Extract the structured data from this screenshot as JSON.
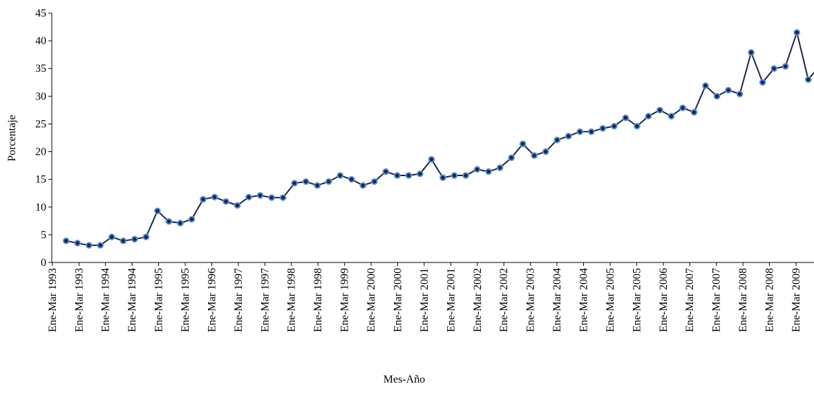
{
  "chart_data": {
    "type": "line",
    "y_label": "Porcentaje",
    "x_label": "Mes-Año",
    "x": [
      1,
      2,
      3,
      4,
      5,
      6,
      7,
      8,
      9,
      10,
      11,
      12,
      13,
      14,
      15,
      16,
      17,
      18,
      19,
      20,
      21,
      22,
      23,
      24,
      25,
      26,
      27,
      28,
      29,
      30,
      31,
      32,
      33,
      34,
      35,
      36,
      37,
      38,
      39,
      40,
      41,
      42,
      43,
      44,
      45,
      46,
      47,
      48,
      49,
      50,
      51,
      52,
      53,
      54,
      55,
      56,
      57,
      58,
      59,
      60,
      61,
      62,
      63,
      64,
      65,
      66,
      67
    ],
    "series": [
      {
        "color": "#1c2647",
        "marker_color": "#5b8fd6",
        "values": [
          3.9,
          3.5,
          3.1,
          3.1,
          4.6,
          3.9,
          4.2,
          4.6,
          9.3,
          7.4,
          7.1,
          7.8,
          11.4,
          11.8,
          11.0,
          10.3,
          11.8,
          12.1,
          11.7,
          11.7,
          14.3,
          14.6,
          13.9,
          14.6,
          15.7,
          15.0,
          13.9,
          14.6,
          16.4,
          15.7,
          15.7,
          16.0,
          18.6,
          15.3,
          15.7,
          15.7,
          16.8,
          16.4,
          17.1,
          18.9,
          21.4,
          19.3,
          20.0,
          22.1,
          22.8,
          23.6,
          23.6,
          24.2,
          24.6,
          26.1,
          24.6,
          26.4,
          27.5,
          26.4,
          27.9,
          27.1,
          31.9,
          30.0,
          31.1,
          30.4,
          37.9,
          32.5,
          35.0,
          35.4,
          41.5,
          33.0,
          35.5
        ]
      }
    ],
    "xlim": [
      -0.25,
      66.5
    ],
    "xticks": [
      {
        "value": -0.2,
        "label": "Ene-Mar 1993"
      },
      {
        "value": 2.13,
        "label": "Ene-Mar 1993"
      },
      {
        "value": 4.45,
        "label": "Ene-Mar 1994"
      },
      {
        "value": 6.78,
        "label": "Ene-Mar 1994"
      },
      {
        "value": 9.1,
        "label": "Ene-Mar 1995"
      },
      {
        "value": 11.43,
        "label": "Ene-Mar 1995"
      },
      {
        "value": 13.76,
        "label": "Ene-Mar 1996"
      },
      {
        "value": 16.08,
        "label": "Ene-Mar 1997"
      },
      {
        "value": 18.41,
        "label": "Ene-Mar 1997"
      },
      {
        "value": 20.73,
        "label": "Ene-Mar 1998"
      },
      {
        "value": 23.06,
        "label": "Ene-Mar 1998"
      },
      {
        "value": 25.39,
        "label": "Ene-Mar 1999"
      },
      {
        "value": 27.71,
        "label": "Ene-Mar 2000"
      },
      {
        "value": 30.04,
        "label": "Ene-Mar 2000"
      },
      {
        "value": 32.36,
        "label": "Ene-Mar 2001"
      },
      {
        "value": 34.69,
        "label": "Ene-Mar 2001"
      },
      {
        "value": 37.02,
        "label": "Ene-Mar 2002"
      },
      {
        "value": 39.34,
        "label": "Ene-Mar 2002"
      },
      {
        "value": 41.67,
        "label": "Ene-Mar 2003"
      },
      {
        "value": 43.99,
        "label": "Ene-Mar 2004"
      },
      {
        "value": 46.32,
        "label": "Ene-Mar 2004"
      },
      {
        "value": 48.65,
        "label": "Ene-Mar 2005"
      },
      {
        "value": 50.97,
        "label": "Ene-Mar 2005"
      },
      {
        "value": 53.3,
        "label": "Ene-Mar 2006"
      },
      {
        "value": 55.62,
        "label": "Ene-Mar 2007"
      },
      {
        "value": 57.95,
        "label": "Ene-Mar 2007"
      },
      {
        "value": 60.28,
        "label": "Ene-Mar 2008"
      },
      {
        "value": 62.6,
        "label": "Ene-Mar 2008"
      },
      {
        "value": 64.93,
        "label": "Ene-Mar 2009"
      }
    ],
    "ylim": [
      0,
      45
    ],
    "yticks": [
      0,
      5,
      10,
      15,
      20,
      25,
      30,
      35,
      40,
      45
    ],
    "grid": false
  }
}
